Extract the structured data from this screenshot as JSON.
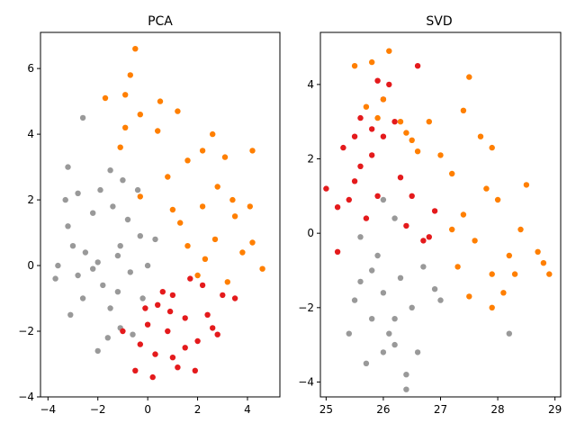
{
  "colors": {
    "grey": "#999999",
    "red": "#e41a1c",
    "orange": "#ff7f00"
  },
  "chart_data": [
    {
      "type": "scatter",
      "title": "PCA",
      "xlabel": "",
      "ylabel": "",
      "xlim": [
        -4.3,
        5.3
      ],
      "ylim": [
        -4.0,
        7.1
      ],
      "xticks": [
        -4,
        -2,
        0,
        2,
        4
      ],
      "yticks": [
        -4,
        -2,
        0,
        2,
        4,
        6
      ],
      "legend": "none",
      "grid": false,
      "series": [
        {
          "color": "grey",
          "points": [
            [
              -3.2,
              1.2
            ],
            [
              -3.6,
              0.0
            ],
            [
              -3.7,
              -0.4
            ],
            [
              -3.0,
              0.6
            ],
            [
              -2.8,
              -0.3
            ],
            [
              -2.5,
              0.4
            ],
            [
              -2.2,
              1.6
            ],
            [
              -1.9,
              2.3
            ],
            [
              -1.5,
              2.9
            ],
            [
              -2.6,
              4.5
            ],
            [
              -3.2,
              3.0
            ],
            [
              -2.0,
              0.1
            ],
            [
              -1.8,
              -0.6
            ],
            [
              -1.5,
              -1.3
            ],
            [
              -1.1,
              -1.9
            ],
            [
              -0.6,
              -2.1
            ],
            [
              -0.3,
              0.9
            ],
            [
              -0.8,
              1.4
            ],
            [
              -1.2,
              0.3
            ],
            [
              0.0,
              0.0
            ],
            [
              0.3,
              0.8
            ],
            [
              -0.2,
              -1.0
            ],
            [
              -1.6,
              -2.2
            ],
            [
              -2.6,
              -1.0
            ],
            [
              -3.1,
              -1.5
            ],
            [
              -2.2,
              -0.1
            ],
            [
              -2.0,
              -2.6
            ],
            [
              -1.1,
              0.6
            ],
            [
              -0.4,
              2.3
            ],
            [
              -3.3,
              2.0
            ],
            [
              -0.7,
              -0.2
            ],
            [
              -1.4,
              1.8
            ],
            [
              -2.8,
              2.2
            ],
            [
              -1.2,
              -0.8
            ],
            [
              -1.0,
              2.6
            ]
          ]
        },
        {
          "color": "red",
          "points": [
            [
              0.0,
              -1.8
            ],
            [
              0.3,
              -2.7
            ],
            [
              0.8,
              -2.0
            ],
            [
              1.0,
              -0.9
            ],
            [
              1.5,
              -1.6
            ],
            [
              2.0,
              -2.3
            ],
            [
              2.4,
              -1.5
            ],
            [
              2.8,
              -2.1
            ],
            [
              1.2,
              -3.1
            ],
            [
              0.2,
              -3.4
            ],
            [
              -0.5,
              -3.2
            ],
            [
              -1.0,
              -2.0
            ],
            [
              0.6,
              -0.8
            ],
            [
              1.7,
              -0.4
            ],
            [
              3.0,
              -0.9
            ],
            [
              2.6,
              -1.9
            ],
            [
              1.5,
              -2.5
            ],
            [
              0.4,
              -1.2
            ],
            [
              -0.3,
              -2.4
            ],
            [
              2.2,
              -0.6
            ],
            [
              1.0,
              -2.8
            ],
            [
              1.9,
              -3.2
            ],
            [
              0.9,
              -1.4
            ],
            [
              -0.1,
              -1.3
            ],
            [
              3.5,
              -1.0
            ]
          ]
        },
        {
          "color": "orange",
          "points": [
            [
              -0.5,
              6.6
            ],
            [
              -0.7,
              5.8
            ],
            [
              -0.9,
              5.2
            ],
            [
              -1.7,
              5.1
            ],
            [
              -0.3,
              4.6
            ],
            [
              0.5,
              5.0
            ],
            [
              -0.9,
              4.2
            ],
            [
              1.2,
              4.7
            ],
            [
              2.6,
              4.0
            ],
            [
              2.2,
              3.5
            ],
            [
              3.1,
              3.3
            ],
            [
              4.2,
              3.5
            ],
            [
              1.6,
              3.2
            ],
            [
              0.8,
              2.7
            ],
            [
              -0.3,
              2.1
            ],
            [
              2.2,
              1.8
            ],
            [
              3.5,
              1.5
            ],
            [
              4.1,
              1.8
            ],
            [
              1.3,
              1.3
            ],
            [
              2.7,
              0.8
            ],
            [
              3.8,
              0.4
            ],
            [
              2.0,
              -0.3
            ],
            [
              4.6,
              -0.1
            ],
            [
              3.2,
              -0.5
            ],
            [
              1.6,
              0.6
            ],
            [
              2.3,
              0.2
            ],
            [
              4.2,
              0.7
            ],
            [
              -1.1,
              3.6
            ],
            [
              3.4,
              2.0
            ],
            [
              1.0,
              1.7
            ],
            [
              0.4,
              4.1
            ],
            [
              2.8,
              2.4
            ]
          ]
        }
      ]
    },
    {
      "type": "scatter",
      "title": "SVD",
      "xlabel": "",
      "ylabel": "",
      "xlim": [
        24.9,
        29.1
      ],
      "ylim": [
        -4.4,
        5.4
      ],
      "xticks": [
        25,
        26,
        27,
        28,
        29
      ],
      "yticks": [
        -4,
        -2,
        0,
        2,
        4
      ],
      "legend": "none",
      "grid": false,
      "series": [
        {
          "color": "grey",
          "points": [
            [
              25.4,
              -2.7
            ],
            [
              25.6,
              -1.3
            ],
            [
              25.8,
              -2.3
            ],
            [
              26.0,
              -1.6
            ],
            [
              26.2,
              -3.0
            ],
            [
              25.7,
              -3.5
            ],
            [
              26.4,
              -3.8
            ],
            [
              26.6,
              -3.2
            ],
            [
              25.5,
              -1.8
            ],
            [
              26.1,
              -2.7
            ],
            [
              26.3,
              -1.2
            ],
            [
              25.9,
              -0.6
            ],
            [
              26.2,
              0.4
            ],
            [
              26.0,
              0.9
            ],
            [
              26.5,
              -2.0
            ],
            [
              26.9,
              -1.5
            ],
            [
              27.0,
              -1.8
            ],
            [
              28.2,
              -2.7
            ],
            [
              26.7,
              -0.9
            ],
            [
              25.6,
              -0.1
            ],
            [
              26.4,
              -4.2
            ],
            [
              25.8,
              -1.0
            ],
            [
              26.2,
              -2.3
            ],
            [
              26.0,
              -3.2
            ]
          ]
        },
        {
          "color": "red",
          "points": [
            [
              25.0,
              1.2
            ],
            [
              25.2,
              0.7
            ],
            [
              25.3,
              2.3
            ],
            [
              25.5,
              1.4
            ],
            [
              25.6,
              3.1
            ],
            [
              25.7,
              0.4
            ],
            [
              25.8,
              2.1
            ],
            [
              25.9,
              1.0
            ],
            [
              26.0,
              2.6
            ],
            [
              26.1,
              4.0
            ],
            [
              26.2,
              3.0
            ],
            [
              26.3,
              1.5
            ],
            [
              26.4,
              0.2
            ],
            [
              26.5,
              1.0
            ],
            [
              26.6,
              4.5
            ],
            [
              25.9,
              4.1
            ],
            [
              25.8,
              2.8
            ],
            [
              25.4,
              0.9
            ],
            [
              25.6,
              1.8
            ],
            [
              26.7,
              -0.2
            ],
            [
              26.9,
              0.6
            ],
            [
              26.8,
              -0.1
            ],
            [
              25.2,
              -0.5
            ],
            [
              26.0,
              3.6
            ],
            [
              25.5,
              2.6
            ]
          ]
        },
        {
          "color": "orange",
          "points": [
            [
              25.5,
              4.5
            ],
            [
              25.8,
              4.6
            ],
            [
              26.1,
              4.9
            ],
            [
              26.0,
              3.6
            ],
            [
              25.9,
              3.1
            ],
            [
              26.3,
              3.0
            ],
            [
              26.5,
              2.5
            ],
            [
              26.8,
              3.0
            ],
            [
              27.0,
              2.1
            ],
            [
              27.2,
              1.6
            ],
            [
              27.4,
              3.3
            ],
            [
              27.5,
              4.2
            ],
            [
              27.7,
              2.6
            ],
            [
              27.8,
              1.2
            ],
            [
              27.9,
              2.3
            ],
            [
              28.0,
              0.9
            ],
            [
              27.4,
              0.5
            ],
            [
              27.6,
              -0.2
            ],
            [
              27.3,
              -0.9
            ],
            [
              27.9,
              -1.1
            ],
            [
              28.2,
              -0.6
            ],
            [
              28.4,
              0.1
            ],
            [
              28.5,
              1.3
            ],
            [
              28.7,
              -0.5
            ],
            [
              28.9,
              -1.1
            ],
            [
              28.8,
              -0.8
            ],
            [
              27.5,
              -1.7
            ],
            [
              27.9,
              -2.0
            ],
            [
              28.3,
              -1.1
            ],
            [
              27.2,
              0.1
            ],
            [
              26.4,
              2.7
            ],
            [
              25.7,
              3.4
            ],
            [
              28.1,
              -1.6
            ],
            [
              26.6,
              2.2
            ]
          ]
        }
      ]
    }
  ]
}
